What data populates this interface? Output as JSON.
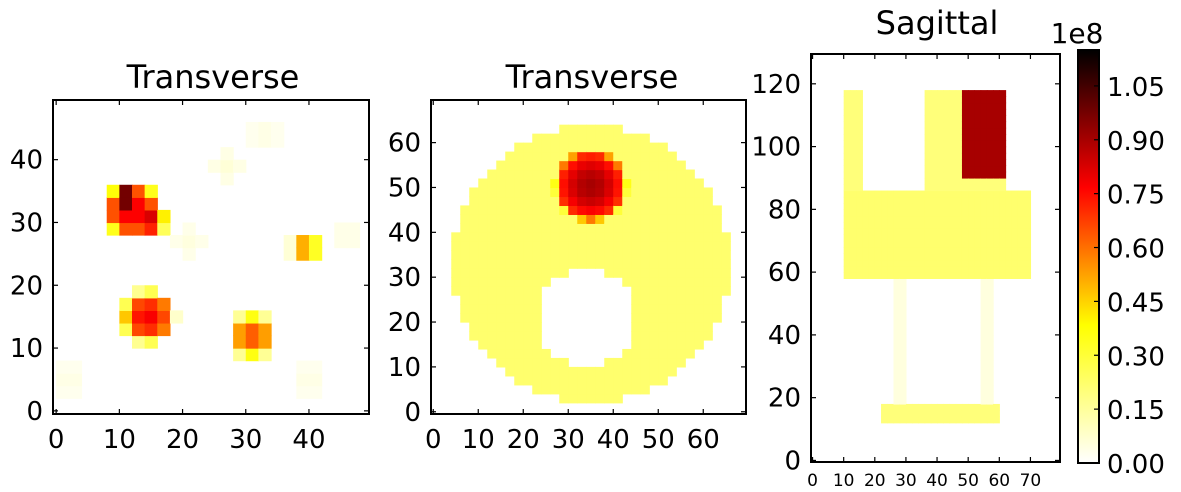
{
  "chart_data": [
    {
      "type": "heatmap",
      "title": "Transverse",
      "xlim": [
        -0.5,
        49.5
      ],
      "ylim": [
        -0.5,
        49.5
      ],
      "xticks": [
        0,
        10,
        20,
        30,
        40
      ],
      "yticks": [
        0,
        10,
        20,
        30,
        40
      ],
      "features": [
        {
          "shape": "spot",
          "cx": 12,
          "cy": 32,
          "r": 3.6,
          "level": 0.8
        },
        {
          "shape": "spot",
          "cx": 11,
          "cy": 34,
          "r": 1.4,
          "level": 1.12
        },
        {
          "shape": "spot",
          "cx": 14.5,
          "cy": 30.5,
          "r": 2.0,
          "level": 0.85
        },
        {
          "shape": "spot",
          "cx": 14.5,
          "cy": 15,
          "r": 3.2,
          "level": 0.78
        },
        {
          "shape": "spot",
          "cx": 31,
          "cy": 12,
          "r": 2.6,
          "level": 0.65
        },
        {
          "shape": "spot",
          "cx": 39.5,
          "cy": 26,
          "r": 1.4,
          "level": 0.6
        },
        {
          "shape": "spot",
          "cx": 27,
          "cy": 39,
          "r": 1.8,
          "level": 0.06
        },
        {
          "shape": "spot",
          "cx": 21,
          "cy": 27,
          "r": 1.8,
          "level": 0.05
        },
        {
          "shape": "spot",
          "cx": 40,
          "cy": 5,
          "r": 2.0,
          "level": 0.04
        },
        {
          "shape": "spot",
          "cx": 46,
          "cy": 28,
          "r": 2.0,
          "level": 0.04
        },
        {
          "shape": "spot",
          "cx": 2,
          "cy": 5,
          "r": 2.0,
          "level": 0.04
        },
        {
          "shape": "spot",
          "cx": 33,
          "cy": 44,
          "r": 2.0,
          "level": 0.04
        }
      ]
    },
    {
      "type": "heatmap",
      "title": "Transverse",
      "xlim": [
        -0.5,
        69.5
      ],
      "ylim": [
        -0.5,
        69.5
      ],
      "xticks": [
        0,
        10,
        20,
        30,
        40,
        50,
        60
      ],
      "yticks": [
        0,
        10,
        20,
        30,
        40,
        50,
        60
      ],
      "features": [
        {
          "shape": "disk",
          "cx": 35,
          "cy": 33,
          "r": 31,
          "level": 0.22
        },
        {
          "shape": "ring",
          "cx": 35,
          "cy": 33,
          "r": 28,
          "w": 2.2,
          "level": 0.12
        },
        {
          "shape": "hole",
          "cx": 34,
          "cy": 21,
          "r": 11,
          "level": 0.0
        },
        {
          "shape": "spot",
          "cx": 35,
          "cy": 50.5,
          "r": 7.3,
          "level": 0.9
        },
        {
          "shape": "spot",
          "cx": 34,
          "cy": 49,
          "r": 3.5,
          "level": 0.15
        },
        {
          "shape": "spot",
          "cx": 18,
          "cy": 15,
          "r": 1.8,
          "level": 0.12
        },
        {
          "shape": "spot",
          "cx": 52,
          "cy": 26,
          "r": 1.8,
          "level": 0.12
        },
        {
          "shape": "spot",
          "cx": 35,
          "cy": 7,
          "r": 1.8,
          "level": 0.12
        }
      ]
    },
    {
      "type": "heatmap",
      "title": "Sagittal",
      "xlim": [
        -0.5,
        79.5
      ],
      "ylim": [
        -0.5,
        129.5
      ],
      "xticks": [
        0,
        10,
        20,
        30,
        40,
        50,
        60,
        70
      ],
      "yticks": [
        0,
        20,
        40,
        60,
        80,
        100,
        120
      ],
      "features": [
        {
          "shape": "rect",
          "x0": 11,
          "x1": 70,
          "y0": 58,
          "y1": 86,
          "level": 0.22
        },
        {
          "shape": "rect",
          "x0": 11,
          "x1": 15,
          "y0": 86,
          "y1": 118,
          "level": 0.2
        },
        {
          "shape": "rect",
          "x0": 36,
          "x1": 62,
          "y0": 86,
          "y1": 118,
          "level": 0.2
        },
        {
          "shape": "rect",
          "x0": 48,
          "x1": 62,
          "y0": 90,
          "y1": 118,
          "level": 0.9
        },
        {
          "shape": "rect",
          "x0": 27,
          "x1": 29,
          "y0": 18,
          "y1": 58,
          "level": 0.05
        },
        {
          "shape": "rect",
          "x0": 55,
          "x1": 57,
          "y0": 18,
          "y1": 58,
          "level": 0.05
        },
        {
          "shape": "rect",
          "x0": 22,
          "x1": 60,
          "y0": 12,
          "y1": 17,
          "level": 0.2
        }
      ]
    }
  ],
  "colorbar": {
    "multiplier_label": "1e8",
    "vmin": 0.0,
    "vmax": 1.15,
    "ticks": [
      "0.00",
      "0.15",
      "0.30",
      "0.45",
      "0.60",
      "0.75",
      "0.90",
      "1.05"
    ],
    "colormap": "afmhot_r",
    "colors": [
      "#ffffff",
      "#ffff80",
      "#ffff00",
      "#ff8000",
      "#ff0000",
      "#800000",
      "#000000"
    ]
  }
}
